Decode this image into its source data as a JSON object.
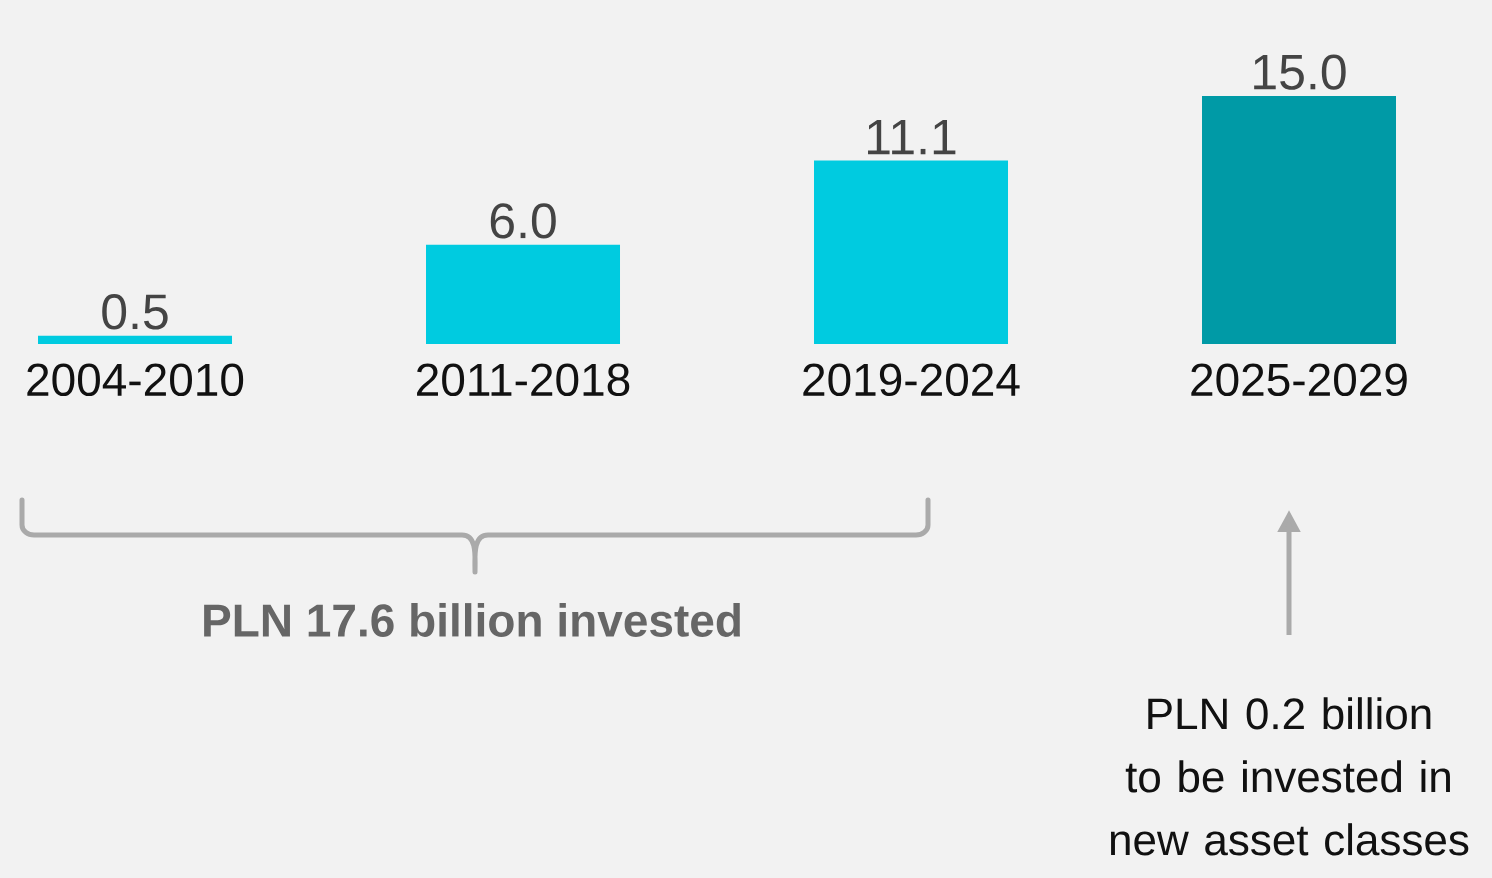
{
  "chart_data": {
    "type": "bar",
    "categories": [
      "2004-2010",
      "2011-2018",
      "2019-2024",
      "2025-2029"
    ],
    "values": [
      0.5,
      6.0,
      11.1,
      15.0
    ],
    "colors": [
      "#00cbe0",
      "#00cbe0",
      "#00cbe0",
      "#009aa6"
    ],
    "value_labels": [
      "0.5",
      "6.0",
      "11.1",
      "15.0"
    ],
    "annotations": [
      "PLN 17.6 billion invested",
      "PLN 0.2 billion to be invested in new asset classes"
    ]
  }
}
